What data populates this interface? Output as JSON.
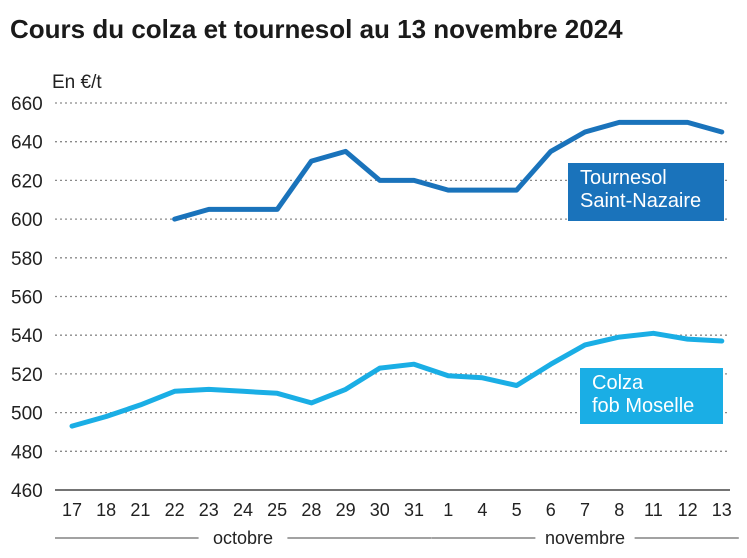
{
  "title": "Cours du colza et tournesol au 13 novembre 2024",
  "chart_data": {
    "type": "line",
    "title": "Cours du colza et tournesol au 13 novembre 2024",
    "ylabel": "En €/t",
    "xlabel": "",
    "ylim": [
      460,
      660
    ],
    "yticks": [
      460,
      480,
      500,
      520,
      540,
      560,
      580,
      600,
      620,
      640,
      660
    ],
    "grid": true,
    "categories": [
      "17",
      "18",
      "21",
      "22",
      "23",
      "24",
      "25",
      "28",
      "29",
      "30",
      "31",
      "1",
      "4",
      "5",
      "6",
      "7",
      "8",
      "11",
      "12",
      "13"
    ],
    "month_groups": [
      {
        "label": "octobre",
        "from": 0,
        "to": 10
      },
      {
        "label": "novembre",
        "from": 11,
        "to": 19
      }
    ],
    "series": [
      {
        "name": "Tournesol Saint-Nazaire",
        "name_lines": [
          "Tournesol",
          "Saint-Nazaire"
        ],
        "color": "#1a73bb",
        "values": [
          null,
          null,
          null,
          600,
          605,
          605,
          605,
          630,
          635,
          620,
          620,
          615,
          615,
          615,
          635,
          645,
          650,
          650,
          650,
          645
        ]
      },
      {
        "name": "Colza fob Moselle",
        "name_lines": [
          "Colza",
          "fob Moselle"
        ],
        "color": "#1aaee5",
        "values": [
          493,
          498,
          504,
          511,
          512,
          511,
          510,
          505,
          512,
          523,
          525,
          519,
          518,
          514,
          525,
          535,
          539,
          541,
          538,
          537
        ]
      }
    ],
    "legend_placement": "inline-right"
  }
}
